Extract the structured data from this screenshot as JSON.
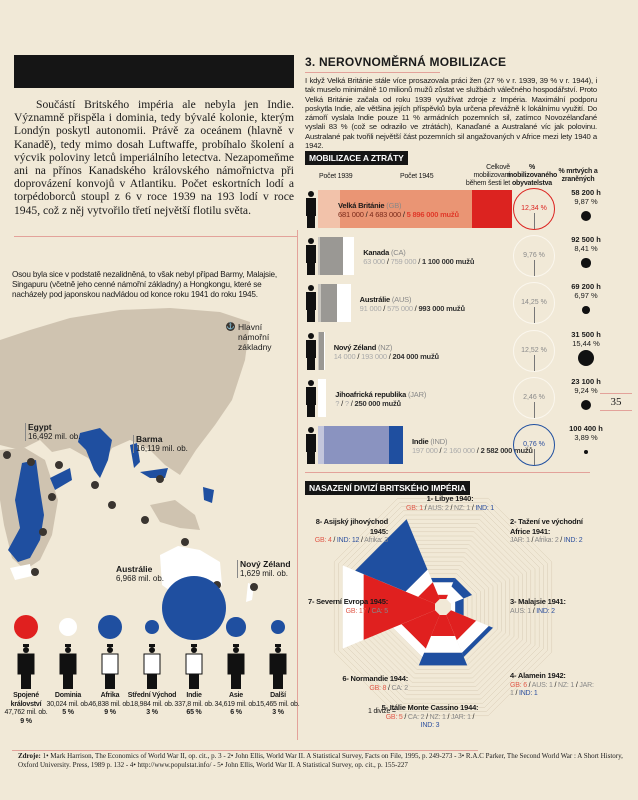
{
  "left": {
    "lead_paragraph": "Součástí Britského impéria ale nebyla jen Indie. Významně přispěla i dominia, tedy bývalé kolonie, kterým Londýn poskytl autonomii. Právě za oceánem (hlavně v Kanadě), tedy mimo dosah Luftwaffe, probíhalo školení a výcvik poloviny letců imperiálního letectva. Nezapomeňme ani na přínos Kanadského královského námořnictva při doprovázení konvojů v Atlantiku. Počet eskortních lodí a torpédoborců stoupl z 6 v roce 1939 na 193 lodí v roce 1945, což z něj vytvořilo třetí největší flotilu světa.",
    "map_note": "Osou byla sice v podstatě nezalidněná, to však nebyl případ Barmy, Malajsie, Singapuru (včetně jeho cenné námořní základny) a Hongkongu, které se nacházely pod japonskou nadvládou od konce roku 1941 do roku 1945.",
    "legend_naval_bases": "Hlavní námořní základny",
    "map_labels": [
      {
        "name": "Egypt",
        "pop": "16,492 mil. ob."
      },
      {
        "name": "Barma",
        "pop": "16,119 mil. ob."
      },
      {
        "name": "Austrálie",
        "pop": "6,968 mil. ob."
      },
      {
        "name": "Nový Zéland",
        "pop": "1,629 mil. ob."
      }
    ],
    "population": [
      {
        "name": "Spojené království",
        "pop": "47,762 mil. ob.",
        "pct": "9 %",
        "value": 9,
        "color": "#e0201f"
      },
      {
        "name": "Dominia",
        "pop": "30,024 mil. ob.",
        "pct": "5 %",
        "value": 5,
        "color": "#ffffff"
      },
      {
        "name": "Afrika",
        "pop": "46,838 mil. ob.",
        "pct": "9 %",
        "value": 9,
        "color": "#1f4fa0"
      },
      {
        "name": "Střední Východ",
        "pop": "18,984 mil. ob.",
        "pct": "3 %",
        "value": 3,
        "color": "#1f4fa0"
      },
      {
        "name": "Indie",
        "pop": "337,8 mil. ob.",
        "pct": "65 %",
        "value": 65,
        "color": "#1f4fa0"
      },
      {
        "name": "Asie",
        "pop": "34,619 mil. ob.",
        "pct": "6 %",
        "value": 6,
        "color": "#1f4fa0"
      },
      {
        "name": "Další",
        "pop": "15,465 mil. ob.",
        "pct": "3 %",
        "value": 3,
        "color": "#1f4fa0"
      }
    ]
  },
  "right": {
    "title": "3. NEROVNOMĚRNÁ MOBILIZACE",
    "paragraph": "I když Velká Británie stále více prosazovala práci žen (27 % v r. 1939, 39 % v r. 1944), i tak muselo minimálně 10 milionů mužů zůstat ve službách válečného hospodářství. Proto Velká Británie začala od roku 1939 využívat zdroje z Impéria. Maximální podporu poskytla Indie, ale většina jejích příspěvků byla určena převážně k lokálnímu využití. Do zámoří vyslala Indie pouze 11 % armádních pozemních sil, zatímco Novozélanďané vyslali 83 % (což se odrazilo ve ztrátách), Kanaďané a Australané víc jak polovinu. Australané pak tvořili největší část pozemních sil angažovaných v Africe mezi lety 1940 a 1942.",
    "mobilization": {
      "tag": "MOBILIZACE A ZTRÁTY",
      "headers": {
        "y1939": "Počet 1939",
        "y1945": "Počet 1945",
        "total": "Celkově mobilizovaní během šesti let",
        "pct_mob": "% mobilizovaného obyvatelstva",
        "pct_dead": "% mrtvých a zraněných"
      },
      "unit": "mužů",
      "rows": [
        {
          "name": "Velká Británie",
          "code": "(GB)",
          "n1939": "681 000",
          "n1945": "4 683 000",
          "total": "5 896 000",
          "v1939": 681000,
          "v1945": 4683000,
          "vtotal": 5896000,
          "pct_mob": "12,34 %",
          "losses": "58 200 h",
          "pct_dead": "9,87 %",
          "dead_value": 9.87,
          "colors": [
            "#f2c2aa",
            "#ea9574",
            "#dc2320"
          ],
          "ring": "#dc2320"
        },
        {
          "name": "Kanada",
          "code": "(CA)",
          "n1939": "63 000",
          "n1945": "759 000",
          "total": "1 100 000",
          "v1939": 63000,
          "v1945": 759000,
          "vtotal": 1100000,
          "pct_mob": "9,76 %",
          "losses": "92 500 h",
          "pct_dead": "8,41 %",
          "dead_value": 8.41,
          "colors": [
            "#c9c6c0",
            "#9a9894",
            "#ffffff"
          ],
          "ring": "#fbf7ee"
        },
        {
          "name": "Austrálie",
          "code": "(AUS)",
          "n1939": "91 000",
          "n1945": "575 000",
          "total": "993 000",
          "v1939": 91000,
          "v1945": 575000,
          "vtotal": 993000,
          "pct_mob": "14,25 %",
          "losses": "69 200 h",
          "pct_dead": "6,97 %",
          "dead_value": 6.97,
          "colors": [
            "#c9c6c0",
            "#9a9894",
            "#ffffff"
          ],
          "ring": "#fbf7ee"
        },
        {
          "name": "Nový Zéland",
          "code": "(NZ)",
          "n1939": "14 000",
          "n1945": "193 000",
          "total": "204 000",
          "v1939": 14000,
          "v1945": 193000,
          "vtotal": 204000,
          "pct_mob": "12,52 %",
          "losses": "31 500 h",
          "pct_dead": "15,44 %",
          "dead_value": 15.44,
          "colors": [
            "#c9c6c0",
            "#9a9894",
            "#ffffff"
          ],
          "ring": "#fbf7ee"
        },
        {
          "name": "Jihoafrická republika",
          "code": "(JAR)",
          "n1939": "?",
          "n1945": "?",
          "total": "250 000",
          "v1939": 0,
          "v1945": 0,
          "vtotal": 250000,
          "pct_mob": "2,46 %",
          "losses": "23 100 h",
          "pct_dead": "9,24 %",
          "dead_value": 9.24,
          "colors": [
            "#c9c6c0",
            "#9a9894",
            "#ffffff"
          ],
          "ring": "#fbf7ee"
        },
        {
          "name": "Indie",
          "code": "(IND)",
          "n1939": "197 000",
          "n1945": "2 160 000",
          "total": "2 582 000",
          "v1939": 197000,
          "v1945": 2160000,
          "vtotal": 2582000,
          "pct_mob": "0,76 %",
          "losses": "100 400 h",
          "pct_dead": "3,89 %",
          "dead_value": 3.89,
          "colors": [
            "#c3c6dc",
            "#8a93c0",
            "#1f4fa0"
          ],
          "ring": "#1f4fa0"
        }
      ]
    },
    "divisions": {
      "tag": "NASAZENÍ DIVIZÍ BRITSKÉHO IMPÉRIA",
      "scale_label": "1 divize =",
      "colors": {
        "GB": "#e0201f",
        "other": "#ffffff",
        "IND": "#1f4fa0"
      },
      "campaigns": [
        {
          "label": "1- Libye 1940:",
          "parts": [
            {
              "k": "GB",
              "n": 1
            },
            {
              "k": "AUS",
              "n": 2
            },
            {
              "k": "NZ",
              "n": 1
            },
            {
              "k": "IND",
              "n": 1
            }
          ]
        },
        {
          "label": "2- Tažení ve východní Africe 1941:",
          "parts": [
            {
              "k": "JAR",
              "n": 1
            },
            {
              "k": "Afrika",
              "n": 2
            },
            {
              "k": "IND",
              "n": 2
            }
          ]
        },
        {
          "label": "3- Malajsie 1941:",
          "parts": [
            {
              "k": "AUS",
              "n": 1
            },
            {
              "k": "IND",
              "n": 2
            }
          ]
        },
        {
          "label": "4- Alamein 1942:",
          "parts": [
            {
              "k": "GB",
              "n": 6
            },
            {
              "k": "AUS",
              "n": 1
            },
            {
              "k": "NZ",
              "n": 1
            },
            {
              "k": "JAR",
              "n": 1
            },
            {
              "k": "IND",
              "n": 1
            }
          ]
        },
        {
          "label": "5- Itálie Monte Cassino 1944:",
          "parts": [
            {
              "k": "GB",
              "n": 5
            },
            {
              "k": "CA",
              "n": 2
            },
            {
              "k": "NZ",
              "n": 1
            },
            {
              "k": "JAR",
              "n": 1
            },
            {
              "k": "IND",
              "n": 3
            }
          ]
        },
        {
          "label": "6- Normandie 1944:",
          "parts": [
            {
              "k": "GB",
              "n": 8
            },
            {
              "k": "CA",
              "n": 2
            }
          ]
        },
        {
          "label": "7- Severní Evropa 1945:",
          "parts": [
            {
              "k": "GB",
              "n": 17
            },
            {
              "k": "CA",
              "n": 5
            }
          ]
        },
        {
          "label": "8- Asijský jihovýchod 1945:",
          "parts": [
            {
              "k": "GB",
              "n": 4
            },
            {
              "k": "IND",
              "n": 12
            },
            {
              "k": "Afrika",
              "n": 3
            }
          ]
        }
      ]
    }
  },
  "page_number": "35",
  "sources": {
    "label": "Zdroje:",
    "text": "1• Mark Harrison, The Economics of World War II, op. cit., p. 3 - 2• John Ellis, World War II. A Statistical Survey, Facts on File, 1995, p. 249-273 - 3• R.A.C Parker, The Second World War : A Short History, Oxford University. Press, 1989 p. 132 - 4• http://www.populstat.info/ - 5• John Ellis, World War II. A Statistical Survey, op. cit., p. 155-227"
  }
}
